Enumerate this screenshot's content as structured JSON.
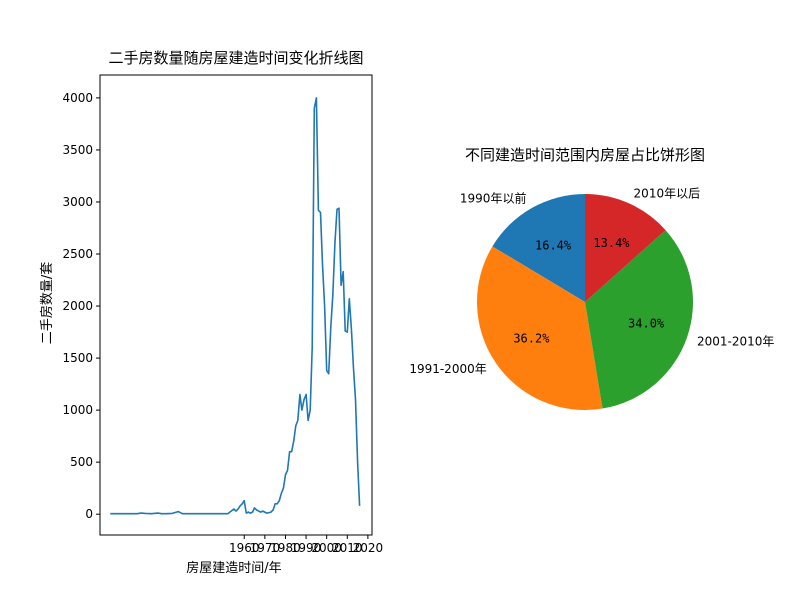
{
  "chart_data": [
    {
      "type": "line",
      "title": "二手房数量随房屋建造时间变化折线图",
      "xlabel": "房屋建造时间/年",
      "ylabel": "二手房数量/套",
      "xlim": [
        1890,
        2022
      ],
      "ylim": [
        -200,
        4220
      ],
      "xticks": [
        1960,
        1970,
        1980,
        1990,
        2000,
        2010,
        2020
      ],
      "yticks": [
        0,
        500,
        1000,
        1500,
        2000,
        2500,
        3000,
        3500,
        4000
      ],
      "grid": false,
      "series": [
        {
          "color": "#1f77b4",
          "x": [
            1895,
            1900,
            1905,
            1908,
            1910,
            1912,
            1915,
            1918,
            1920,
            1922,
            1925,
            1928,
            1930,
            1933,
            1935,
            1937,
            1940,
            1942,
            1945,
            1950,
            1952,
            1955,
            1956,
            1957,
            1958,
            1959,
            1960,
            1961,
            1962,
            1963,
            1964,
            1965,
            1966,
            1967,
            1968,
            1969,
            1970,
            1971,
            1972,
            1973,
            1974,
            1975,
            1976,
            1977,
            1978,
            1979,
            1980,
            1981,
            1982,
            1983,
            1984,
            1985,
            1986,
            1987,
            1988,
            1989,
            1990,
            1991,
            1992,
            1993,
            1994,
            1995,
            1996,
            1997,
            1998,
            1999,
            2000,
            2001,
            2002,
            2003,
            2004,
            2005,
            2006,
            2007,
            2008,
            2009,
            2010,
            2011,
            2012,
            2013,
            2014,
            2015,
            2016
          ],
          "y": [
            5,
            5,
            5,
            5,
            10,
            8,
            5,
            10,
            5,
            5,
            8,
            25,
            5,
            5,
            5,
            5,
            5,
            5,
            5,
            5,
            5,
            50,
            30,
            50,
            80,
            100,
            130,
            10,
            20,
            10,
            20,
            60,
            40,
            30,
            20,
            30,
            20,
            10,
            15,
            20,
            40,
            100,
            100,
            130,
            200,
            250,
            380,
            420,
            600,
            600,
            700,
            850,
            900,
            1150,
            1000,
            1100,
            1150,
            900,
            1000,
            1600,
            3900,
            4000,
            2920,
            2900,
            2400,
            2000,
            1380,
            1350,
            1800,
            2100,
            2600,
            2930,
            2940,
            2200,
            2330,
            1760,
            1750,
            2070,
            1780,
            1400,
            1100,
            500,
            80
          ]
        }
      ]
    },
    {
      "type": "pie",
      "title": "不同建造时间范围内房屋占比饼形图",
      "categories": [
        "1990年以前",
        "1991-2000年",
        "2001-2010年",
        "2010年以后"
      ],
      "values": [
        16.4,
        36.2,
        34.0,
        13.4
      ],
      "labels_pct": [
        "16.4%",
        "36.2%",
        "34.0%",
        "13.4%"
      ],
      "colors": [
        "#1f77b4",
        "#ff7f0e",
        "#2ca02c",
        "#d62728"
      ],
      "startangle": 90,
      "direction": "counterclockwise"
    }
  ]
}
